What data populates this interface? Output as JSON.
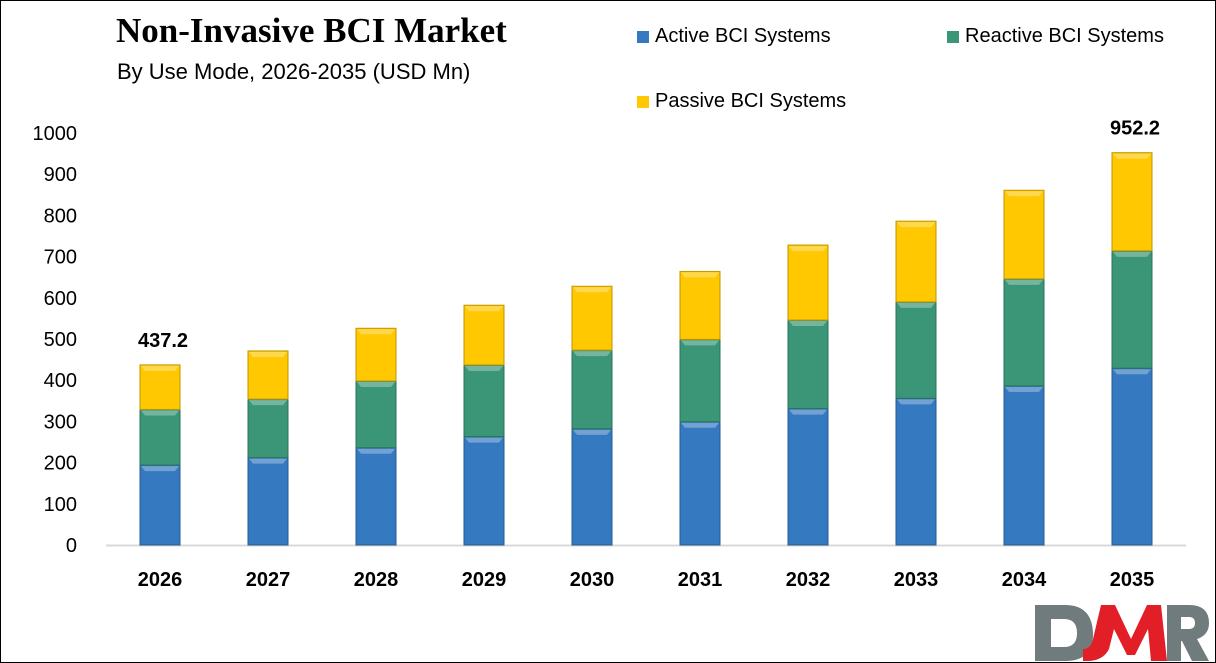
{
  "chart_data": {
    "type": "bar",
    "stacked": true,
    "title": "Non-Invasive BCI Market",
    "subtitle": "By Use Mode, 2026-2035 (USD Mn)",
    "xlabel": "",
    "ylabel": "",
    "ylim": [
      0,
      1000
    ],
    "yticks": [
      "0",
      "100",
      "200",
      "300",
      "400",
      "500",
      "600",
      "700",
      "800",
      "900",
      "1000"
    ],
    "grid": false,
    "legend_position": "top-right",
    "categories": [
      "2026",
      "2027",
      "2028",
      "2029",
      "2030",
      "2031",
      "2032",
      "2033",
      "2034",
      "2035"
    ],
    "series": [
      {
        "name": "Active BCI Systems",
        "color": "#3579c0",
        "values": [
          194,
          212,
          236,
          263,
          282,
          299,
          331,
          356,
          386,
          429
        ]
      },
      {
        "name": "Reactive BCI Systems",
        "color": "#3a9677",
        "values": [
          135,
          142,
          162,
          174,
          191,
          200,
          215,
          234,
          260,
          285
        ]
      },
      {
        "name": "Passive BCI Systems",
        "color": "#ffc800",
        "values": [
          108.2,
          117,
          128,
          145,
          155,
          165,
          182,
          196,
          215,
          238.2
        ]
      }
    ],
    "data_labels": [
      {
        "category": "2026",
        "text": "437.2"
      },
      {
        "category": "2035",
        "text": "952.2"
      }
    ]
  },
  "logo": {
    "text": "DMR",
    "colors": {
      "D": "#6f7b7d",
      "M": "#e21f26",
      "R": "#6f7b7d"
    }
  }
}
